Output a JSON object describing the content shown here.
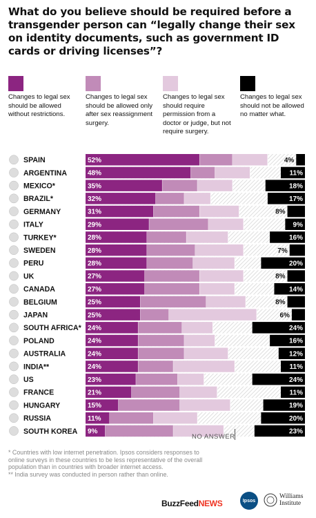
{
  "title": "What do you believe should be required before a transgender person can “legally change their sex on identity documents, such as government ID cards or driving licenses”?",
  "legend": [
    {
      "label": "Changes to legal sex should be allowed without restrictions.",
      "color": "#8c2581"
    },
    {
      "label": "Changes to legal sex should be allowed only after sex reassignment surgery.",
      "color": "#c18bb8"
    },
    {
      "label": "Changes to legal sex should require permission from a doctor or judge, but not require surgery.",
      "color": "#e3c9de"
    },
    {
      "label": "Changes to legal sex should not be allowed no matter what.",
      "color": "#000000"
    }
  ],
  "no_answer_label": "NO ANSWER",
  "footnote": "* Countries with low internet penetration. Ipsos considers responses to online surveys in these countries to be less representative of the overall population than in countries with broader internet access.\n** India survey was conducted in person rather than online.",
  "logos": {
    "buzzfeed": "BuzzFeed",
    "buzzfeed_news": "NEWS",
    "ipsos": "Ipsos",
    "williams_line1": "Williams",
    "williams_line2": "Institute"
  },
  "chart_data": {
    "type": "bar",
    "stacked": true,
    "categories": [
      "SPAIN",
      "ARGENTINA",
      "MEXICO*",
      "BRAZIL*",
      "GERMANY",
      "ITALY",
      "TURKEY*",
      "SWEDEN",
      "PERU",
      "UK",
      "CANADA",
      "BELGIUM",
      "JAPAN",
      "SOUTH AFRICA*",
      "POLAND",
      "AUSTRALIA",
      "INDIA**",
      "US",
      "FRANCE",
      "HUNGARY",
      "RUSSIA",
      "SOUTH KOREA"
    ],
    "flag_icons": [
      "spain-flag-icon",
      "argentina-flag-icon",
      "mexico-flag-icon",
      "brazil-flag-icon",
      "germany-flag-icon",
      "italy-flag-icon",
      "turkey-flag-icon",
      "sweden-flag-icon",
      "peru-flag-icon",
      "uk-flag-icon",
      "canada-flag-icon",
      "belgium-flag-icon",
      "japan-flag-icon",
      "south-africa-flag-icon",
      "poland-flag-icon",
      "australia-flag-icon",
      "india-flag-icon",
      "us-flag-icon",
      "france-flag-icon",
      "hungary-flag-icon",
      "russia-flag-icon",
      "south-korea-flag-icon"
    ],
    "series": [
      {
        "values": [
          52,
          48,
          35,
          32,
          31,
          29,
          28,
          28,
          28,
          27,
          27,
          25,
          25,
          24,
          24,
          24,
          24,
          23,
          21,
          15,
          11,
          9
        ],
        "color": "#8c2581"
      },
      {
        "values": [
          15,
          11,
          16,
          13,
          21,
          27,
          18,
          22,
          21,
          25,
          25,
          30,
          13,
          20,
          21,
          21,
          16,
          19,
          22,
          28,
          20,
          31
        ],
        "color": "#c18bb8"
      },
      {
        "values": [
          16,
          16,
          16,
          12,
          18,
          16,
          19,
          22,
          19,
          20,
          16,
          18,
          40,
          14,
          14,
          20,
          28,
          12,
          17,
          23,
          20,
          23
        ],
        "color": "#e3c9de"
      },
      {
        "values": [
          4,
          11,
          18,
          17,
          8,
          9,
          16,
          7,
          20,
          8,
          14,
          8,
          6,
          24,
          16,
          12,
          11,
          24,
          11,
          19,
          20,
          23
        ],
        "color": "#000000"
      }
    ],
    "value_labels": [
      "52%",
      "48%",
      "35%",
      "32%",
      "31%",
      "29%",
      "28%",
      "28%",
      "28%",
      "27%",
      "27%",
      "25%",
      "25%",
      "24%",
      "24%",
      "24%",
      "24%",
      "23%",
      "21%",
      "15%",
      "11%",
      "9%"
    ],
    "xlim": [
      0,
      100
    ]
  }
}
